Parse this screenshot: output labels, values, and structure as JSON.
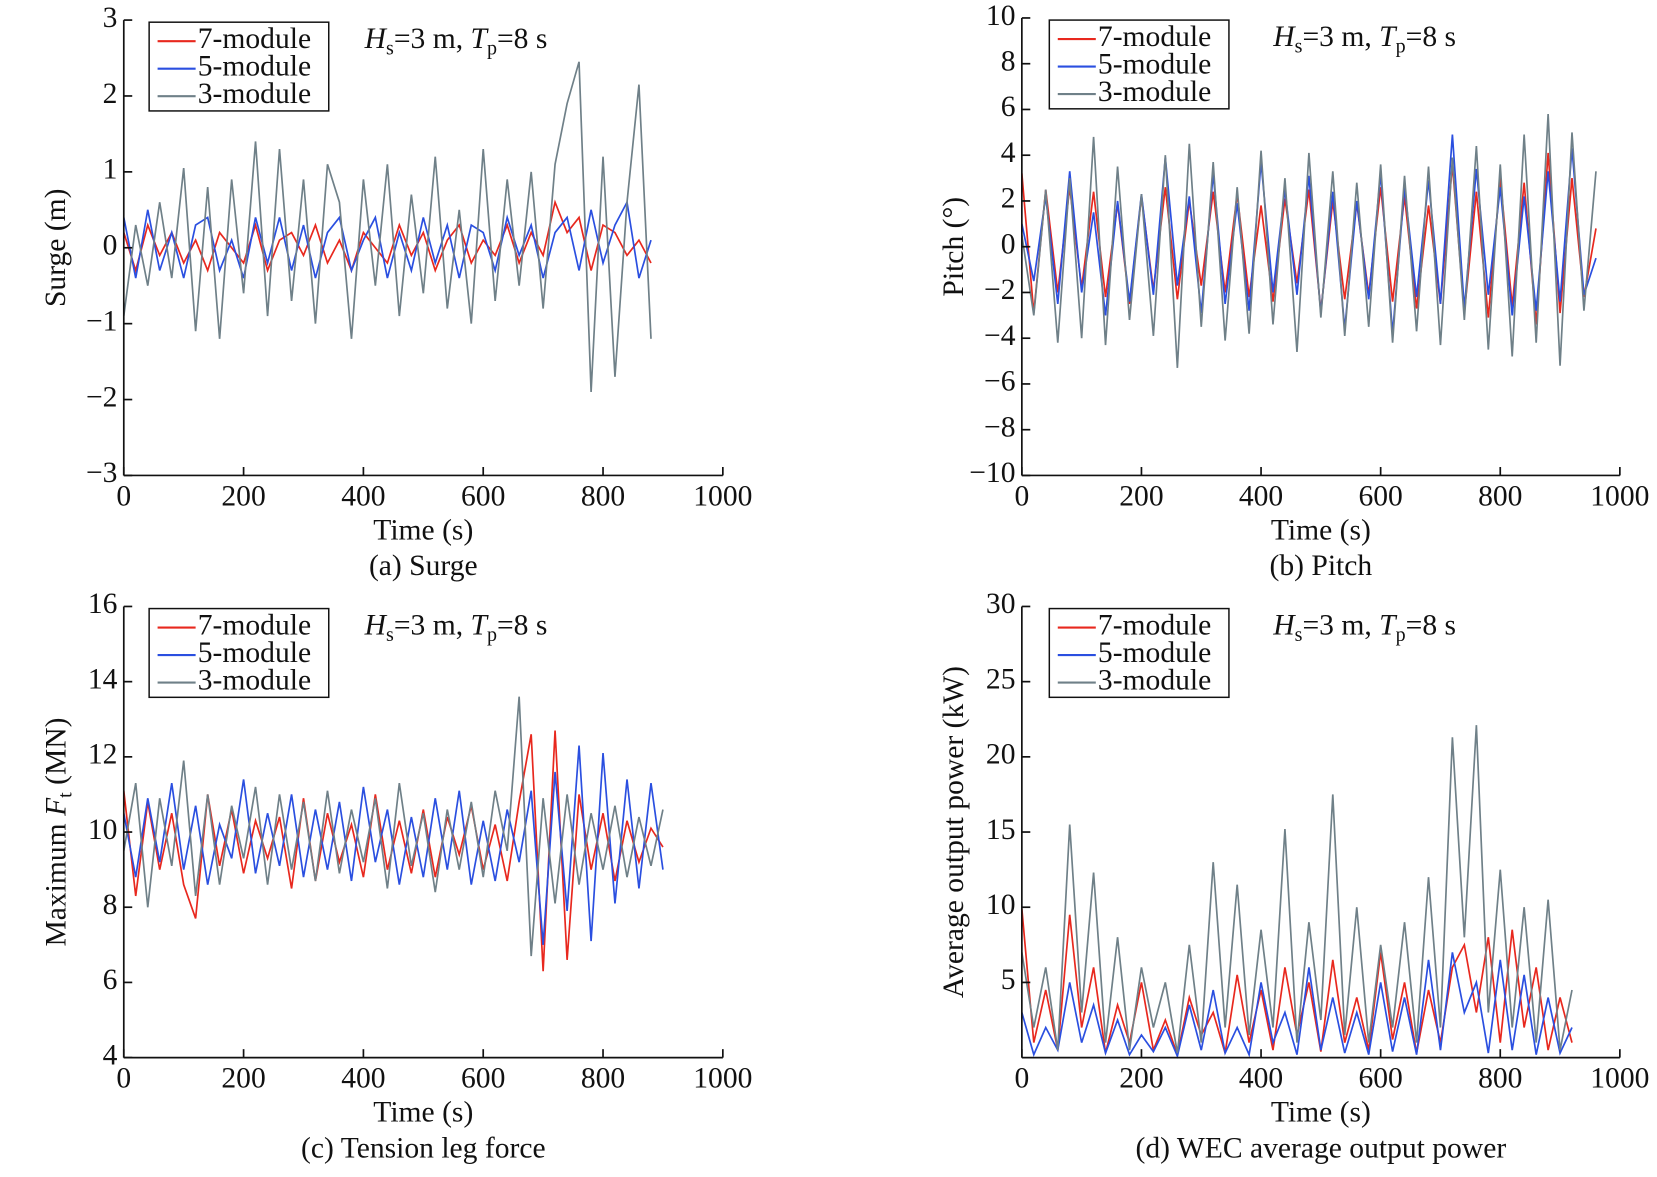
{
  "chart_data": [
    {
      "type": "line",
      "caption": "(a) Surge",
      "xlabel": "Time (s)",
      "ylabel": "Surge (m)",
      "annotation": [
        "H",
        "s",
        "=3 m, ",
        "T",
        "p",
        "=8 s"
      ],
      "legend": "upper left",
      "xlim": [
        0,
        1000
      ],
      "xticks": [
        0,
        200,
        400,
        600,
        800,
        1000
      ],
      "ylim": [
        -3,
        3
      ],
      "yticks": [
        {
          "value": -3,
          "label": "−3"
        },
        {
          "value": -2,
          "label": "−2"
        },
        {
          "value": -1,
          "label": "−1"
        },
        0,
        1,
        2,
        3
      ],
      "x": [
        0,
        20,
        40,
        60,
        80,
        100,
        120,
        140,
        160,
        180,
        200,
        220,
        240,
        260,
        280,
        300,
        320,
        340,
        360,
        380,
        400,
        420,
        440,
        460,
        480,
        500,
        520,
        540,
        560,
        580,
        600,
        620,
        640,
        660,
        680,
        700,
        720,
        740,
        760,
        780,
        800,
        820,
        840,
        860,
        880
      ],
      "series": [
        {
          "name": "7-module",
          "color": "#e8281e",
          "values": [
            0.2,
            -0.3,
            0.3,
            -0.1,
            0.2,
            -0.2,
            0.1,
            -0.3,
            0.2,
            0.0,
            -0.2,
            0.3,
            -0.3,
            0.1,
            0.2,
            -0.1,
            0.3,
            -0.2,
            0.1,
            -0.3,
            0.2,
            0.0,
            -0.2,
            0.3,
            -0.1,
            0.2,
            -0.3,
            0.1,
            0.3,
            -0.2,
            0.1,
            -0.1,
            0.3,
            -0.2,
            0.2,
            -0.1,
            0.6,
            0.2,
            0.4,
            -0.3,
            0.3,
            0.2,
            -0.1,
            0.1,
            -0.2
          ]
        },
        {
          "name": "5-module",
          "color": "#2a4fe0",
          "values": [
            0.4,
            -0.4,
            0.5,
            -0.3,
            0.2,
            -0.4,
            0.3,
            0.4,
            -0.3,
            0.1,
            -0.4,
            0.4,
            -0.2,
            0.4,
            -0.3,
            0.3,
            -0.4,
            0.2,
            0.4,
            -0.3,
            0.1,
            0.4,
            -0.4,
            0.2,
            -0.3,
            0.4,
            -0.2,
            0.3,
            -0.4,
            0.3,
            0.2,
            -0.3,
            0.4,
            -0.1,
            0.3,
            -0.4,
            0.2,
            0.4,
            -0.3,
            0.5,
            -0.2,
            0.3,
            0.6,
            -0.4,
            0.1
          ]
        },
        {
          "name": "3-module",
          "color": "#6f8088",
          "values": [
            -0.9,
            0.3,
            -0.5,
            0.6,
            -0.4,
            1.05,
            -1.1,
            0.8,
            -1.2,
            0.9,
            -0.6,
            1.4,
            -0.9,
            1.3,
            -0.7,
            0.9,
            -1.0,
            1.1,
            0.6,
            -1.2,
            0.9,
            -0.5,
            1.1,
            -0.9,
            0.7,
            -0.6,
            1.2,
            -0.8,
            0.5,
            -1.0,
            1.3,
            -0.7,
            0.9,
            -0.5,
            1.0,
            -0.8,
            1.1,
            1.9,
            2.45,
            -1.9,
            1.2,
            -1.7,
            0.6,
            2.15,
            -1.2
          ]
        }
      ]
    },
    {
      "type": "line",
      "caption": "(b) Pitch",
      "xlabel": "Time (s)",
      "ylabel": "Pitch (°)",
      "annotation": [
        "H",
        "s",
        "=3 m, ",
        "T",
        "p",
        "=8 s"
      ],
      "legend": "upper left",
      "xlim": [
        0,
        1000
      ],
      "xticks": [
        0,
        200,
        400,
        600,
        800,
        1000
      ],
      "ylim": [
        -10,
        10
      ],
      "yticks": [
        {
          "value": -10,
          "label": "−10"
        },
        {
          "value": -8,
          "label": "−8"
        },
        {
          "value": -6,
          "label": "−6"
        },
        {
          "value": -4,
          "label": "−4"
        },
        {
          "value": -2,
          "label": "−2"
        },
        0,
        2,
        4,
        6,
        8,
        10
      ],
      "x": [
        0,
        20,
        40,
        60,
        80,
        100,
        120,
        140,
        160,
        180,
        200,
        220,
        240,
        260,
        280,
        300,
        320,
        340,
        360,
        380,
        400,
        420,
        440,
        460,
        480,
        500,
        520,
        540,
        560,
        580,
        600,
        620,
        640,
        660,
        680,
        700,
        720,
        740,
        760,
        780,
        800,
        820,
        840,
        860,
        880,
        900,
        920,
        940,
        960
      ],
      "series": [
        {
          "name": "7-module",
          "color": "#e8281e",
          "values": [
            3.2,
            -2.9,
            2.5,
            -2.0,
            2.6,
            -1.8,
            2.4,
            -2.2,
            1.9,
            -2.5,
            2.2,
            -1.9,
            2.6,
            -2.3,
            2.0,
            -1.7,
            2.4,
            -2.0,
            2.3,
            -2.2,
            1.8,
            -2.4,
            2.1,
            -1.6,
            2.5,
            -2.8,
            2.0,
            -2.3,
            1.9,
            -2.1,
            2.6,
            -2.4,
            2.2,
            -2.7,
            1.8,
            -2.5,
            3.6,
            -2.9,
            2.4,
            -3.1,
            3.0,
            -2.6,
            2.8,
            -3.4,
            4.1,
            -2.9,
            3.0,
            -2.2,
            0.8
          ]
        },
        {
          "name": "5-module",
          "color": "#2a4fe0",
          "values": [
            1.0,
            -1.5,
            2.2,
            -2.5,
            3.3,
            -2.0,
            1.5,
            -3.0,
            2.0,
            -2.4,
            2.3,
            -2.1,
            3.9,
            -1.7,
            2.2,
            -2.9,
            3.2,
            -2.5,
            1.9,
            -2.8,
            3.7,
            -2.0,
            2.5,
            -2.1,
            3.1,
            -2.9,
            2.4,
            -3.6,
            2.0,
            -2.3,
            3.2,
            -3.8,
            2.6,
            -2.2,
            2.9,
            -2.5,
            4.9,
            -2.7,
            3.4,
            -2.1,
            2.6,
            -3.0,
            2.2,
            -2.8,
            3.3,
            -2.4,
            4.3,
            -2.1,
            -0.5
          ]
        },
        {
          "name": "3-module",
          "color": "#6f8088",
          "values": [
            0.5,
            -3.0,
            2.5,
            -4.2,
            3.0,
            -4.0,
            4.8,
            -4.3,
            3.5,
            -3.2,
            2.3,
            -3.9,
            4.0,
            -5.3,
            4.5,
            -3.5,
            3.7,
            -4.1,
            2.6,
            -3.8,
            4.2,
            -3.4,
            3.0,
            -4.6,
            4.1,
            -3.1,
            3.3,
            -3.9,
            2.8,
            -3.5,
            3.6,
            -4.2,
            3.1,
            -3.7,
            3.5,
            -4.3,
            3.9,
            -3.2,
            4.4,
            -4.5,
            3.6,
            -4.8,
            4.9,
            -4.2,
            5.8,
            -5.2,
            5.0,
            -2.8,
            3.3
          ]
        }
      ]
    },
    {
      "type": "line",
      "caption": "(c) Tension leg force",
      "xlabel": "Time (s)",
      "ylabel": [
        "Maximum ",
        "F",
        "t",
        " (MN)"
      ],
      "annotation": [
        "H",
        "s",
        "=3 m, ",
        "T",
        "p",
        "=8 s"
      ],
      "legend": "upper left",
      "xlim": [
        0,
        1000
      ],
      "xticks": [
        0,
        200,
        400,
        600,
        800,
        1000
      ],
      "ylim": [
        4,
        16
      ],
      "yticks": [
        4,
        6,
        8,
        10,
        12,
        14,
        16
      ],
      "x": [
        0,
        20,
        40,
        60,
        80,
        100,
        120,
        140,
        160,
        180,
        200,
        220,
        240,
        260,
        280,
        300,
        320,
        340,
        360,
        380,
        400,
        420,
        440,
        460,
        480,
        500,
        520,
        540,
        560,
        580,
        600,
        620,
        640,
        660,
        680,
        700,
        720,
        740,
        760,
        780,
        800,
        820,
        840,
        860,
        880,
        900
      ],
      "series": [
        {
          "name": "7-module",
          "color": "#e8281e",
          "values": [
            11.1,
            8.3,
            10.8,
            9.0,
            10.5,
            8.6,
            7.7,
            11.0,
            9.1,
            10.6,
            8.9,
            10.3,
            9.3,
            10.4,
            8.5,
            10.9,
            8.7,
            10.5,
            9.2,
            10.2,
            8.8,
            11.0,
            9.0,
            10.3,
            8.9,
            10.6,
            8.8,
            10.4,
            9.4,
            10.7,
            9.0,
            10.2,
            8.7,
            10.8,
            12.6,
            6.3,
            12.7,
            6.6,
            11.0,
            9.0,
            10.5,
            8.7,
            10.3,
            9.2,
            10.1,
            9.6
          ]
        },
        {
          "name": "5-module",
          "color": "#2a4fe0",
          "values": [
            10.5,
            8.8,
            10.9,
            9.2,
            11.3,
            9.0,
            10.7,
            8.6,
            10.2,
            9.3,
            11.4,
            8.9,
            10.5,
            9.1,
            11.0,
            8.8,
            10.6,
            9.0,
            10.8,
            8.7,
            11.2,
            9.2,
            10.6,
            8.6,
            10.4,
            8.8,
            10.9,
            9.0,
            11.1,
            8.6,
            10.3,
            8.7,
            10.6,
            9.2,
            11.1,
            7.0,
            11.6,
            7.9,
            12.3,
            7.1,
            12.1,
            8.1,
            11.4,
            8.5,
            11.3,
            9.0
          ]
        },
        {
          "name": "3-module",
          "color": "#6f8088",
          "values": [
            9.5,
            11.3,
            8.0,
            10.9,
            9.1,
            11.9,
            8.3,
            11.0,
            8.6,
            10.7,
            9.3,
            11.2,
            8.6,
            11.0,
            9.0,
            10.8,
            8.7,
            11.1,
            8.9,
            10.6,
            9.2,
            10.9,
            8.5,
            11.3,
            9.1,
            10.5,
            8.4,
            10.6,
            9.0,
            10.8,
            8.8,
            11.1,
            9.5,
            13.6,
            6.7,
            10.9,
            8.1,
            11.0,
            8.6,
            10.5,
            9.0,
            10.7,
            8.8,
            10.4,
            9.1,
            10.6
          ]
        }
      ]
    },
    {
      "type": "line",
      "caption": "(d) WEC average output power",
      "xlabel": "Time (s)",
      "ylabel": "Average output power (kW)",
      "annotation": [
        "H",
        "s",
        "=3 m, ",
        "T",
        "p",
        "=8 s"
      ],
      "legend": "upper left",
      "xlim": [
        0,
        1000
      ],
      "xticks": [
        0,
        200,
        400,
        600,
        800,
        1000
      ],
      "ylim": [
        0,
        30
      ],
      "yticks": [
        5,
        10,
        15,
        20,
        25,
        30
      ],
      "x": [
        0,
        20,
        40,
        60,
        80,
        100,
        120,
        140,
        160,
        180,
        200,
        220,
        240,
        260,
        280,
        300,
        320,
        340,
        360,
        380,
        400,
        420,
        440,
        460,
        480,
        500,
        520,
        540,
        560,
        580,
        600,
        620,
        640,
        660,
        680,
        700,
        720,
        740,
        760,
        780,
        800,
        820,
        840,
        860,
        880,
        900,
        920
      ],
      "series": [
        {
          "name": "7-module",
          "color": "#e8281e",
          "values": [
            9.9,
            1.0,
            4.5,
            0.5,
            9.5,
            2.0,
            6.0,
            0.3,
            3.5,
            1.0,
            5.0,
            0.5,
            2.5,
            0.2,
            4.0,
            1.5,
            3.0,
            0.3,
            5.5,
            1.0,
            4.5,
            0.5,
            6.0,
            1.5,
            5.0,
            0.4,
            6.5,
            1.0,
            4.0,
            0.5,
            7.0,
            1.2,
            5.0,
            0.3,
            4.5,
            1.0,
            6.0,
            7.5,
            3.0,
            8.0,
            1.0,
            8.5,
            2.0,
            6.0,
            0.5,
            4.0,
            1.0
          ]
        },
        {
          "name": "5-module",
          "color": "#2a4fe0",
          "values": [
            3.0,
            0.2,
            2.0,
            0.5,
            5.0,
            1.0,
            3.5,
            0.3,
            2.5,
            0.2,
            1.5,
            0.4,
            2.0,
            0.1,
            3.5,
            0.5,
            4.5,
            0.3,
            2.0,
            0.2,
            5.0,
            1.0,
            3.0,
            0.2,
            6.0,
            0.5,
            4.0,
            0.3,
            3.0,
            0.2,
            5.0,
            0.4,
            4.0,
            0.2,
            6.5,
            0.5,
            7.0,
            3.0,
            5.0,
            0.3,
            6.5,
            0.5,
            5.5,
            0.2,
            4.0,
            0.3,
            2.0
          ]
        },
        {
          "name": "3-module",
          "color": "#6f8088",
          "values": [
            7.0,
            2.0,
            6.0,
            0.5,
            15.5,
            3.0,
            12.3,
            1.0,
            8.0,
            0.5,
            6.0,
            2.0,
            5.0,
            0.3,
            7.5,
            1.0,
            13.0,
            2.0,
            11.5,
            1.5,
            8.5,
            2.0,
            15.2,
            1.0,
            9.0,
            2.5,
            17.5,
            1.5,
            10.0,
            1.0,
            7.5,
            2.0,
            9.0,
            1.0,
            12.0,
            2.0,
            21.3,
            8.0,
            22.1,
            3.0,
            12.5,
            2.0,
            10.0,
            1.0,
            10.5,
            0.5,
            4.5
          ]
        }
      ]
    }
  ]
}
